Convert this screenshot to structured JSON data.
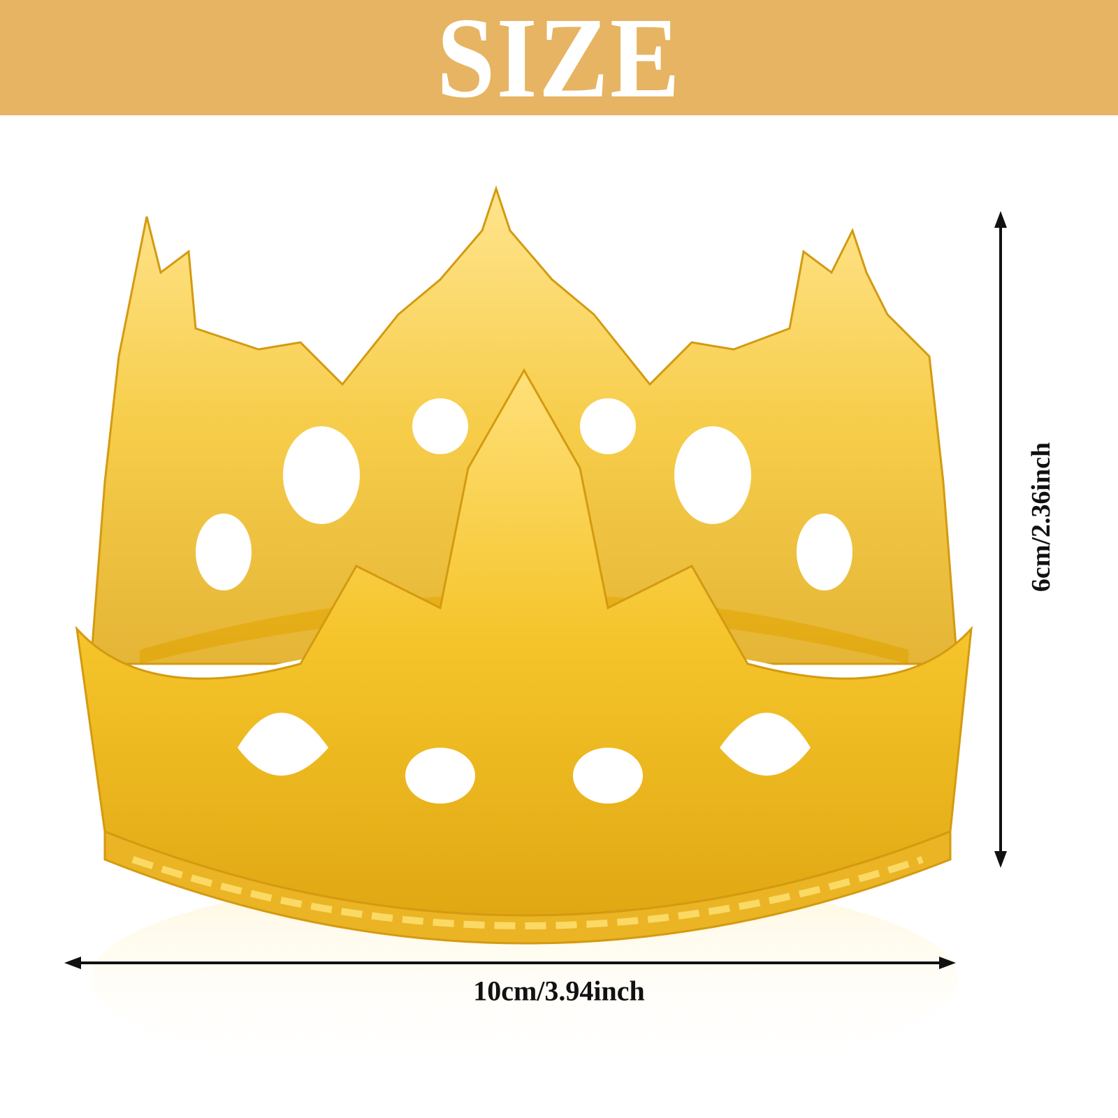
{
  "banner": {
    "title": "SIZE",
    "background": "#e6b462"
  },
  "product": {
    "image": "gold-crown-photo",
    "color": "#f2c12e"
  },
  "dimensions": {
    "height_label": "6cm/2.36inch",
    "width_label": "10cm/3.94inch"
  }
}
